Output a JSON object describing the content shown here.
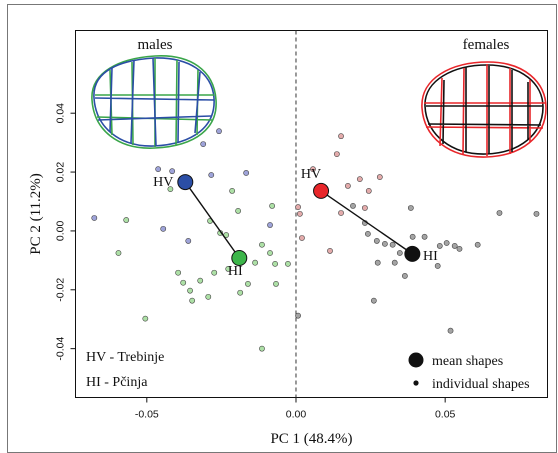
{
  "chart_data": {
    "type": "scatter",
    "xlabel": "PC 1 (48.4%)",
    "ylabel": "PC 2 (11.2%)",
    "xlim": [
      -0.0739,
      0.0843
    ],
    "ylim": [
      -0.0566,
      0.0681
    ],
    "xticks": [
      -0.05,
      {
        "value": 0,
        "label": "0.00"
      },
      0.05
    ],
    "yticks": [
      -0.04,
      -0.02,
      {
        "value": 0,
        "label": "0.00"
      },
      0.02,
      0.04
    ],
    "vline": 0,
    "annotations": [
      "males",
      "females"
    ],
    "group_key": [
      "HV - Trebinje",
      "HI - Pčinja"
    ],
    "legend": {
      "position": "lower right",
      "entries": [
        "mean shapes",
        "individual shapes"
      ]
    },
    "series": [
      {
        "color": "#9ea3d9",
        "mean_color": "#2b4ea6",
        "x": [
          -0.0258,
          -0.0311,
          -0.0462,
          -0.0415,
          -0.0676,
          -0.0361,
          -0.0445,
          -0.0167,
          -0.0087,
          -0.0284
        ],
        "y": [
          0.0339,
          0.0295,
          0.021,
          0.0203,
          0.0044,
          -0.0034,
          0.0007,
          0.0197,
          0.002,
          0.019
        ],
        "mean": {
          "label": "HV",
          "x": -0.0371,
          "y": 0.0166
        }
      },
      {
        "color": "#ade0a6",
        "mean_color": "#3cb54a",
        "x": [
          -0.0569,
          -0.0595,
          -0.0505,
          -0.0395,
          -0.0378,
          -0.0355,
          -0.0321,
          -0.0294,
          -0.0274,
          -0.0227,
          -0.0187,
          -0.0161,
          -0.0137,
          -0.0114,
          -0.0087,
          -0.007,
          -0.0067,
          -0.0027,
          -0.0114,
          -0.0421,
          -0.0214,
          -0.0194,
          -0.0254,
          -0.008,
          -0.0234,
          -0.0288,
          -0.0348
        ],
        "y": [
          0.0037,
          -0.0075,
          -0.0298,
          -0.0142,
          -0.0176,
          -0.0203,
          -0.0169,
          -0.0224,
          -0.0142,
          -0.0129,
          -0.021,
          -0.018,
          -0.0108,
          -0.0047,
          -0.0075,
          -0.0112,
          -0.018,
          -0.0112,
          -0.04,
          0.0142,
          0.0136,
          0.0068,
          -0.0007,
          0.0085,
          -0.0014,
          0.0034,
          -0.0237
        ],
        "mean": {
          "label": "HI",
          "x": -0.019,
          "y": -0.0092
        }
      },
      {
        "color": "#e3abab",
        "mean_color": "#e8262a",
        "x": [
          0.0151,
          0.0137,
          0.0057,
          0.0214,
          0.0281,
          0.0174,
          0.0244,
          0.0013,
          0.0151,
          0.0231,
          0.002,
          0.0114,
          0.0007
        ],
        "y": [
          0.0322,
          0.0261,
          0.021,
          0.0176,
          0.0183,
          0.0153,
          0.0136,
          0.0058,
          0.0061,
          0.0078,
          -0.0024,
          -0.0068,
          0.0081
        ],
        "mean": {
          "label": "HV",
          "x": 0.0084,
          "y": 0.0136
        }
      },
      {
        "color": "#a4a4a4",
        "mean_color": "#111111",
        "x": [
          0.0191,
          0.0231,
          0.0241,
          0.0271,
          0.0298,
          0.0324,
          0.0348,
          0.0331,
          0.0274,
          0.0391,
          0.0431,
          0.0482,
          0.0505,
          0.0532,
          0.0548,
          0.0609,
          0.0475,
          0.0365,
          0.0261,
          0.0518,
          0.0806,
          0.0682,
          0.0385,
          0.0007
        ],
        "y": [
          0.0085,
          0.0027,
          -0.001,
          -0.0034,
          -0.0044,
          -0.0047,
          -0.0075,
          -0.0108,
          -0.0108,
          -0.002,
          -0.002,
          -0.0051,
          -0.0041,
          -0.0051,
          -0.0061,
          -0.0047,
          -0.0119,
          -0.0153,
          -0.0237,
          -0.0339,
          0.0058,
          0.0061,
          0.0078,
          -0.0288
        ],
        "mean": {
          "label": "HI",
          "x": 0.039,
          "y": -0.0078
        }
      }
    ]
  }
}
